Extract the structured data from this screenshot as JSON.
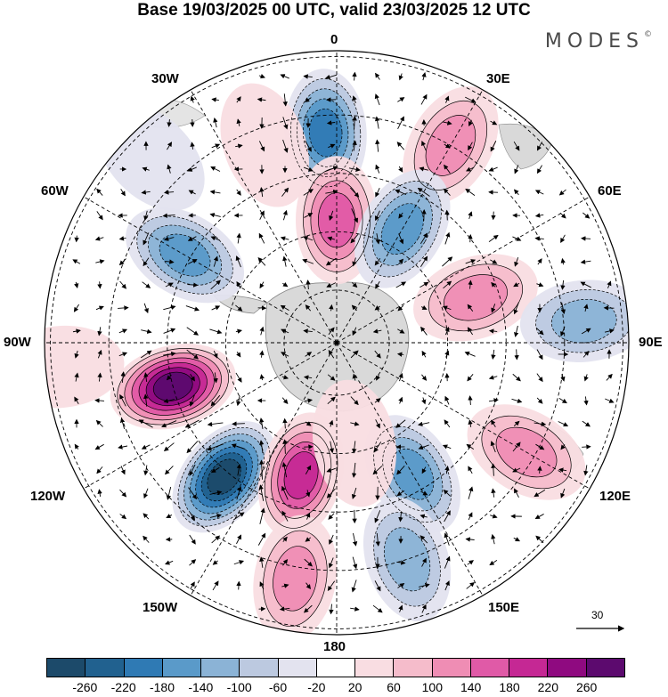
{
  "title": "Base 19/03/2025 00 UTC, valid 23/03/2025 12 UTC",
  "brand": "MODES",
  "brand_mark": "©",
  "longitude_labels": {
    "top": "0",
    "bottom": "180",
    "left": "90W",
    "right": "90E",
    "nw_30": "30W",
    "ne_30": "30E",
    "nw_60": "60W",
    "ne_60": "60E",
    "sw_120": "120W",
    "se_120": "120E",
    "sw_150": "150W",
    "se_150": "150E"
  },
  "reference_vector": {
    "value": "30"
  },
  "colorbar": {
    "tick_labels": [
      "-260",
      "-220",
      "-180",
      "-140",
      "-100",
      "-60",
      "-20",
      "20",
      "60",
      "100",
      "140",
      "180",
      "220",
      "260"
    ],
    "colors": [
      "#1c4a6a",
      "#21618f",
      "#2f7ab4",
      "#5a9ac9",
      "#8bb3d6",
      "#bcc9e0",
      "#e3e3ef",
      "#ffffff",
      "#f9dde2",
      "#f5bccb",
      "#ef8db4",
      "#e05aa7",
      "#c52894",
      "#8f0a80",
      "#5c0a6e"
    ]
  },
  "anomaly_centers": [
    {
      "id": "a1",
      "lon": -3,
      "r": 0.72,
      "value": -190
    },
    {
      "id": "a2",
      "lon": 30,
      "r": 0.78,
      "value": 130
    },
    {
      "id": "a3",
      "lon": 0,
      "r": 0.42,
      "value": 180
    },
    {
      "id": "a4",
      "lon": 30,
      "r": 0.45,
      "value": -170
    },
    {
      "id": "a5",
      "lon": -60,
      "r": 0.6,
      "value": -180
    },
    {
      "id": "a6",
      "lon": -105,
      "r": 0.58,
      "value": 270
    },
    {
      "id": "a7",
      "lon": -140,
      "r": 0.6,
      "value": -270
    },
    {
      "id": "a8",
      "lon": -165,
      "r": 0.47,
      "value": 190
    },
    {
      "id": "a9",
      "lon": -170,
      "r": 0.82,
      "value": 140
    },
    {
      "id": "a10",
      "lon": 150,
      "r": 0.52,
      "value": -160
    },
    {
      "id": "a11",
      "lon": 162,
      "r": 0.78,
      "value": -140
    },
    {
      "id": "a12",
      "lon": 72,
      "r": 0.5,
      "value": 110
    },
    {
      "id": "a13",
      "lon": 85,
      "r": 0.85,
      "value": -120
    },
    {
      "id": "a14",
      "lon": 120,
      "r": 0.75,
      "value": 130
    },
    {
      "id": "a15",
      "lon": 170,
      "r": 0.35,
      "value": 60
    },
    {
      "id": "a16",
      "lon": -20,
      "r": 0.72,
      "value": 50
    },
    {
      "id": "a17",
      "lon": -95,
      "r": 0.95,
      "value": 50
    },
    {
      "id": "a18",
      "lon": -45,
      "r": 0.9,
      "value": -20
    }
  ]
}
